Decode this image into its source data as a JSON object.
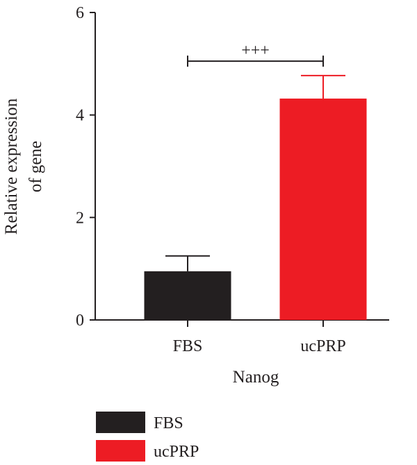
{
  "chart_data": {
    "type": "bar",
    "categories": [
      "FBS",
      "ucPRP"
    ],
    "values": [
      0.95,
      4.32
    ],
    "errors": [
      0.3,
      0.45
    ],
    "colors": [
      "#231f20",
      "#ed1c24"
    ],
    "ylim": [
      0,
      6
    ],
    "yticks": [
      0,
      2,
      4,
      6
    ],
    "ylabel_lines": [
      "Relative expression",
      "of gene"
    ],
    "xlabel": "Nanog",
    "significance": {
      "label": "+++",
      "from": "FBS",
      "to": "ucPRP",
      "y": 5.05
    },
    "legend": {
      "placement": "bottom-left",
      "items": [
        {
          "label": "FBS",
          "color": "#231f20"
        },
        {
          "label": "ucPRP",
          "color": "#ed1c24"
        }
      ]
    },
    "grid": false
  }
}
